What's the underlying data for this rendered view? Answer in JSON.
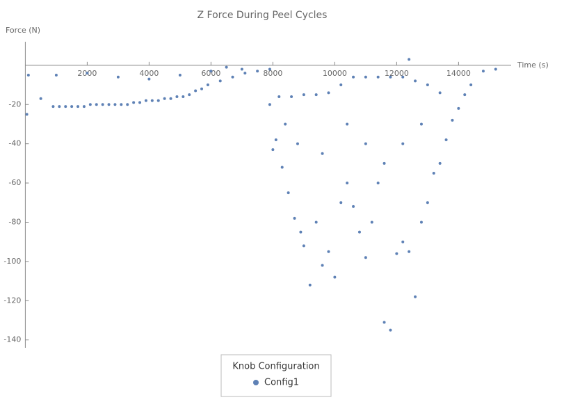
{
  "chart_data": {
    "type": "scatter",
    "title": "Z Force During Peel Cycles",
    "x_label": "Time (s)",
    "y_label": "Force (N)",
    "legend_title": "Knob Configuration",
    "series": [
      {
        "name": "Config1",
        "color": "#5e81b5",
        "x": [
          50,
          100,
          500,
          900,
          1100,
          1300,
          1500,
          1700,
          1900,
          2100,
          2300,
          2500,
          2700,
          2900,
          3100,
          3300,
          3500,
          3700,
          3900,
          4100,
          4300,
          4500,
          4700,
          4900,
          5100,
          5300,
          5500,
          5700,
          5900,
          6300,
          6700,
          7100,
          7500,
          7900,
          1000,
          2000,
          3000,
          4000,
          5000,
          6000,
          7000,
          6500,
          7900,
          8000,
          8100,
          8300,
          8500,
          8700,
          8900,
          9000,
          9200,
          9400,
          9600,
          9800,
          10000,
          10200,
          10400,
          10600,
          10800,
          11000,
          11200,
          11400,
          11600,
          11800,
          12000,
          12200,
          12400,
          12600,
          12800,
          13000,
          13200,
          13400,
          13600,
          13800,
          14000,
          14200,
          14400,
          14800,
          15200,
          8200,
          8600,
          9000,
          9400,
          9800,
          10200,
          10600,
          11000,
          11400,
          11800,
          12200,
          12600,
          13000,
          13400,
          8400,
          8800,
          9600,
          10400,
          11000,
          11600,
          12200,
          12800,
          12400
        ],
        "values": [
          -25,
          -5,
          -17,
          -21,
          -21,
          -21,
          -21,
          -21,
          -21,
          -20,
          -20,
          -20,
          -20,
          -20,
          -20,
          -20,
          -19,
          -19,
          -18,
          -18,
          -18,
          -17,
          -17,
          -16,
          -16,
          -15,
          -13,
          -12,
          -10,
          -8,
          -6,
          -4,
          -3,
          -2,
          -5,
          -4,
          -6,
          -7,
          -5,
          -3,
          -2,
          -1,
          -20,
          -43,
          -38,
          -52,
          -65,
          -78,
          -85,
          -92,
          -112,
          -80,
          -102,
          -95,
          -108,
          -70,
          -60,
          -72,
          -85,
          -98,
          -80,
          -60,
          -131,
          -135,
          -96,
          -90,
          -95,
          -118,
          -80,
          -70,
          -55,
          -50,
          -38,
          -28,
          -22,
          -15,
          -10,
          -3,
          -2,
          -16,
          -16,
          -15,
          -15,
          -14,
          -10,
          -6,
          -6,
          -6,
          -6,
          -6,
          -8,
          -10,
          -14,
          -30,
          -40,
          -45,
          -30,
          -40,
          -50,
          -40,
          -30,
          3
        ]
      }
    ],
    "xlim": [
      0,
      15700
    ],
    "ylim": [
      -144,
      12
    ],
    "xticks": [
      2000,
      4000,
      6000,
      8000,
      10000,
      12000,
      14000
    ],
    "yticks": [
      -140,
      -120,
      -100,
      -80,
      -60,
      -40,
      -20
    ]
  }
}
